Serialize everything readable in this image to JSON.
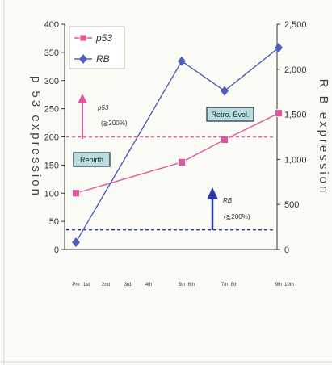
{
  "chart_data": {
    "type": "line",
    "x_categories": [
      "Pre",
      "1st",
      "2nd",
      "3rd",
      "4th",
      "5th",
      "6th",
      "7th",
      "8th",
      "9th",
      "10th"
    ],
    "y_left": {
      "label": "p 53 expression",
      "range": [
        0,
        400
      ],
      "ticks": [
        "0",
        "50",
        "100",
        "150",
        "200",
        "250",
        "300",
        "350",
        "400"
      ]
    },
    "y_right": {
      "label": "R B expression",
      "range": [
        0,
        2500
      ],
      "ticks": [
        "0",
        "500",
        "1,000",
        "1,500",
        "2,000",
        "2,500"
      ]
    },
    "series": [
      {
        "name": "p53",
        "axis": "left",
        "color": "#e0569a",
        "marker": "square",
        "points": [
          {
            "x": "Pre",
            "y": 100
          },
          {
            "x": "5th",
            "y": 155
          },
          {
            "x": "7th",
            "y": 195
          },
          {
            "x": "9th",
            "y": 242
          }
        ]
      },
      {
        "name": "RB",
        "axis": "right",
        "color": "#5060b8",
        "marker": "diamond",
        "points": [
          {
            "x": "Pre",
            "y": 80
          },
          {
            "x": "5th",
            "y": 2090
          },
          {
            "x": "7th",
            "y": 1760
          },
          {
            "x": "9th",
            "y": 2240
          }
        ]
      }
    ],
    "reference_lines": [
      {
        "axis": "left",
        "y": 200,
        "color": "#e0569a",
        "style": "dashed"
      },
      {
        "axis": "left",
        "y": 35,
        "color": "#2a38a8",
        "style": "dashed"
      }
    ],
    "annotations": {
      "p53_threshold": {
        "name": "p53",
        "text": "(≧200%)"
      },
      "rb_threshold": {
        "name": "RB",
        "text": "(≧200%)"
      },
      "boxes": [
        "Rebirth",
        "Retro. Evol."
      ]
    },
    "legend": {
      "placement": "top-left"
    },
    "grid": false
  }
}
